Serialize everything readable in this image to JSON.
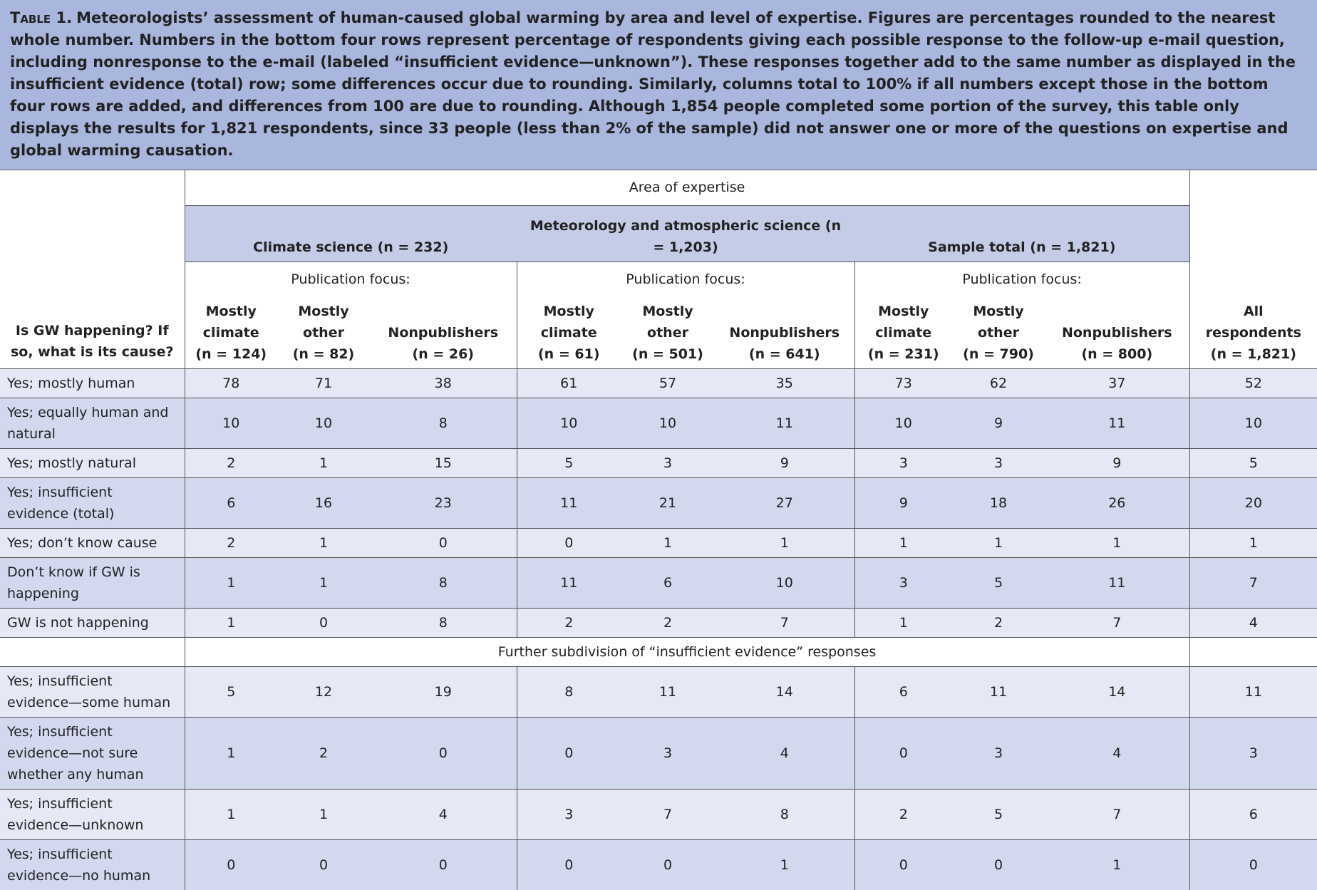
{
  "caption": {
    "label": "Table 1.",
    "text": "Meteorologists’ assessment of human-caused global warming by area and level of expertise. Figures are percentages rounded to the nearest whole number. Numbers in the bottom four rows represent percentage of respondents giving each possible response to the follow-up e-mail question, including nonresponse to the e-mail (labeled “insufficient evidence—unknown”). These responses together add to the same number as displayed in the insufficient evidence (total) row; some differences occur due to rounding. Similarly, columns total to 100% if all numbers except those in the bottom four rows are added, and differences from 100 are due to rounding. Although 1,854 people completed some portion of the survey, this table only displays the results for 1,821 respondents, since 33 people (less than 2% of the sample) did not answer one or more of the questions on expertise and global warming causation."
  },
  "header": {
    "stub": "Is GW happening? If so, what is its cause?",
    "area": "Area of expertise",
    "groups": [
      {
        "name": "Climate science (n = 232)",
        "focus": "Publication focus:",
        "columns": [
          [
            "Mostly",
            "climate",
            "(n = 124)"
          ],
          [
            "Mostly",
            "other",
            "(n = 82)"
          ],
          [
            "Nonpublishers",
            "(n = 26)"
          ]
        ]
      },
      {
        "name": "Meteorology and atmospheric science (n = 1,203)",
        "focus": "Publication focus:",
        "columns": [
          [
            "Mostly",
            "climate",
            "(n = 61)"
          ],
          [
            "Mostly",
            "other",
            "(n = 501)"
          ],
          [
            "Nonpublishers",
            "(n = 641)"
          ]
        ]
      },
      {
        "name": "Sample total (n = 1,821)",
        "focus": "Publication focus:",
        "columns": [
          [
            "Mostly",
            "climate",
            "(n = 231)"
          ],
          [
            "Mostly",
            "other",
            "(n = 790)"
          ],
          [
            "Nonpublishers",
            "(n = 800)"
          ]
        ]
      }
    ],
    "all": [
      "All",
      "respondents",
      "(n = 1,821)"
    ]
  },
  "rows": [
    {
      "label": "Yes; mostly human",
      "values": [
        78,
        71,
        38,
        61,
        57,
        35,
        73,
        62,
        37,
        52
      ]
    },
    {
      "label": "Yes; equally human and natural",
      "values": [
        10,
        10,
        8,
        10,
        10,
        11,
        10,
        9,
        11,
        10
      ]
    },
    {
      "label": "Yes; mostly natural",
      "values": [
        2,
        1,
        15,
        5,
        3,
        9,
        3,
        3,
        9,
        5
      ]
    },
    {
      "label": "Yes; insufficient evidence (total)",
      "values": [
        6,
        16,
        23,
        11,
        21,
        27,
        9,
        18,
        26,
        20
      ]
    },
    {
      "label": "Yes; don’t know cause",
      "values": [
        2,
        1,
        0,
        0,
        1,
        1,
        1,
        1,
        1,
        1
      ]
    },
    {
      "label": "Don’t know if GW is happening",
      "values": [
        1,
        1,
        8,
        11,
        6,
        10,
        3,
        5,
        11,
        7
      ]
    },
    {
      "label": "GW is not happening",
      "values": [
        1,
        0,
        8,
        2,
        2,
        7,
        1,
        2,
        7,
        4
      ]
    }
  ],
  "subdivision": {
    "title": "Further subdivision of “insufficient evidence” responses",
    "rows": [
      {
        "label": "Yes; insufficient evidence—some human",
        "values": [
          5,
          12,
          19,
          8,
          11,
          14,
          6,
          11,
          14,
          11
        ]
      },
      {
        "label": "Yes; insufficient evidence—not sure whether any human",
        "values": [
          1,
          2,
          0,
          0,
          3,
          4,
          0,
          3,
          4,
          3
        ]
      },
      {
        "label": "Yes; insufficient evidence—unknown",
        "values": [
          1,
          1,
          4,
          3,
          7,
          8,
          2,
          5,
          7,
          6
        ]
      },
      {
        "label": "Yes; insufficient evidence—no human",
        "values": [
          0,
          0,
          0,
          0,
          0,
          1,
          0,
          0,
          1,
          0
        ]
      }
    ]
  }
}
